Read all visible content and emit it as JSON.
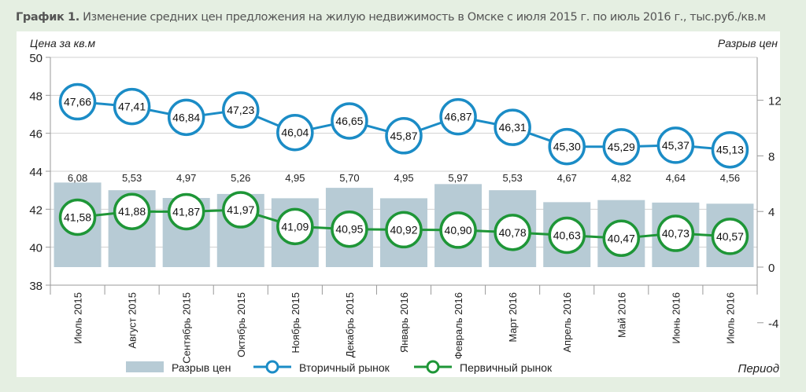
{
  "chart_data": {
    "type": "bar+line",
    "title_bold": "График 1.",
    "title": "Изменение средних цен предложения на жилую недвижимость в Омске с июля 2015 г. по июль 2016 г., тыс.руб./кв.м",
    "ylabel": "Цена за кв.м",
    "y2label": "Разрыв цен",
    "xlabel": "Период",
    "ylim": [
      38,
      50
    ],
    "yticks": [
      38,
      40,
      42,
      44,
      46,
      48,
      50
    ],
    "y2ticks": [
      -4,
      0,
      4,
      8,
      12
    ],
    "grid": true,
    "legend_position": "bottom",
    "categories": [
      "Июль 2015",
      "Август 2015",
      "Сентябрь 2015",
      "Октябрь 2015",
      "Ноябрь 2015",
      "Декабрь 2015",
      "Январь 2016",
      "Февраль 2016",
      "Март 2016",
      "Апрель 2016",
      "Май 2016",
      "Июнь 2016",
      "Июль 2016"
    ],
    "series": [
      {
        "name": "Разрыв цен",
        "type": "bar",
        "axis": "right",
        "color": "#b7cbd5",
        "values": [
          6.08,
          5.53,
          4.97,
          5.26,
          4.95,
          5.7,
          4.95,
          5.97,
          5.53,
          4.67,
          4.82,
          4.64,
          4.56
        ],
        "labels": [
          "6,08",
          "5,53",
          "4,97",
          "5,26",
          "4,95",
          "5,70",
          "4,95",
          "5,97",
          "5,53",
          "4,67",
          "4,82",
          "4,64",
          "4,56"
        ]
      },
      {
        "name": "Вторичный рынок",
        "type": "line",
        "axis": "left",
        "color": "#1b8cc6",
        "values": [
          47.66,
          47.41,
          46.84,
          47.23,
          46.04,
          46.65,
          45.87,
          46.87,
          46.31,
          45.3,
          45.29,
          45.37,
          45.13
        ],
        "labels": [
          "47,66",
          "47,41",
          "46,84",
          "47,23",
          "46,04",
          "46,65",
          "45,87",
          "46,87",
          "46,31",
          "45,30",
          "45,29",
          "45,37",
          "45,13"
        ]
      },
      {
        "name": "Первичный рынок",
        "type": "line",
        "axis": "left",
        "color": "#1e9637",
        "values": [
          41.58,
          41.88,
          41.87,
          41.97,
          41.09,
          40.95,
          40.92,
          40.9,
          40.78,
          40.63,
          40.47,
          40.73,
          40.57
        ],
        "labels": [
          "41,58",
          "41,88",
          "41,87",
          "41,97",
          "41,09",
          "40,95",
          "40,92",
          "40,90",
          "40,78",
          "40,63",
          "40,47",
          "40,73",
          "40,57"
        ]
      }
    ]
  }
}
